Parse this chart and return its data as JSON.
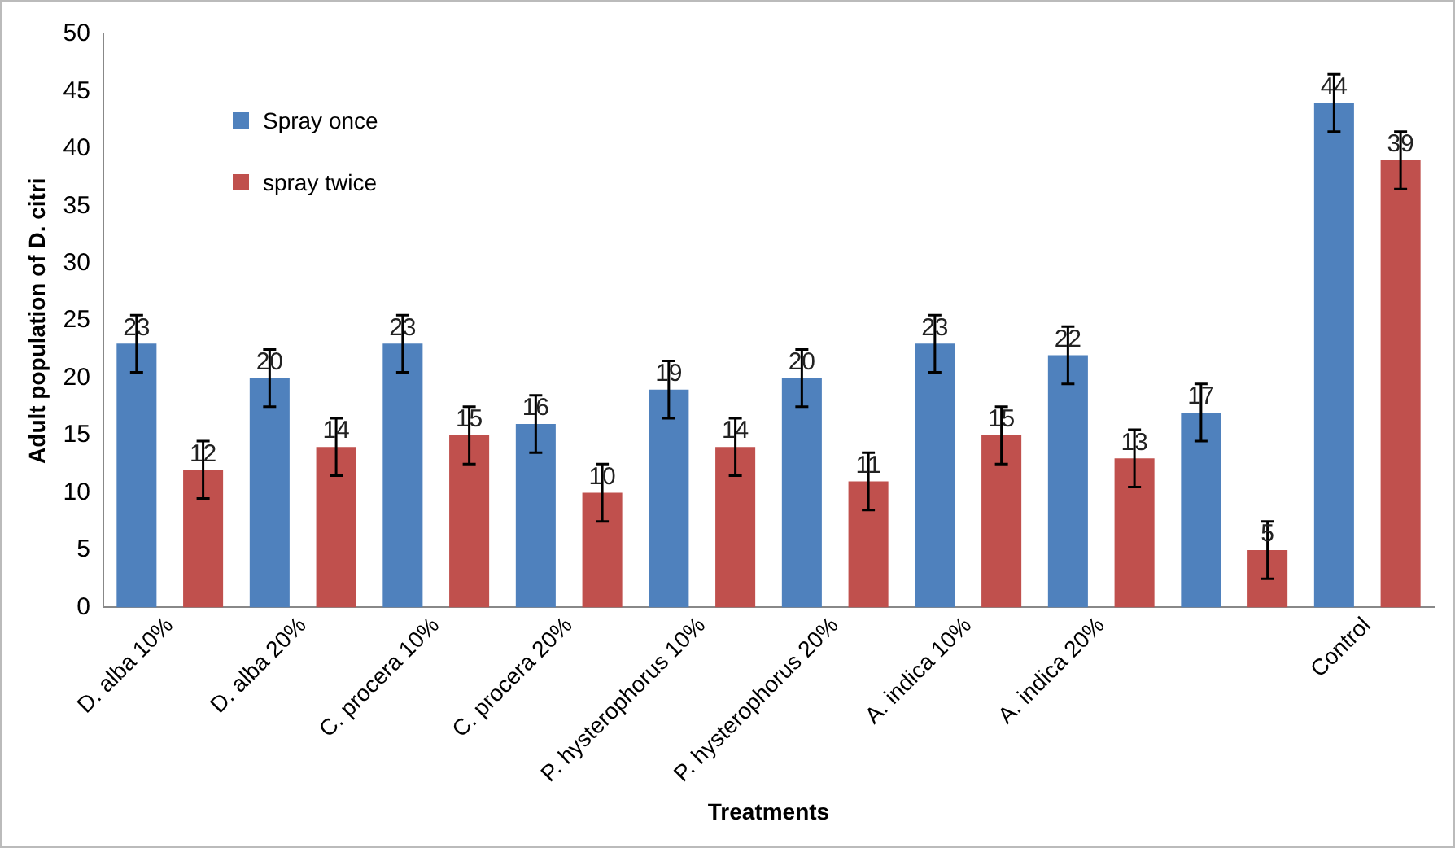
{
  "chart_data": {
    "type": "bar",
    "xlabel": "Treatments",
    "ylabel": "Adult population of D. citri",
    "categories": [
      "D. alba 10%",
      "D. alba 20%",
      "C. procera 10%",
      "C. procera 20%",
      "P. hysterophorus 10%",
      "P. hysterophorus 20%",
      "A. indica 10%",
      "A. indica 20%",
      null,
      "Control"
    ],
    "series": [
      {
        "name": "Spray once",
        "color": "#4f81bd",
        "values": [
          23,
          20,
          23,
          16,
          19,
          20,
          23,
          22,
          17,
          44
        ],
        "errors": [
          2.5,
          2.5,
          2.5,
          2.5,
          2.5,
          2.5,
          2.5,
          2.5,
          2.5,
          2.5
        ]
      },
      {
        "name": "spray twice",
        "color": "#c0504d",
        "values": [
          12,
          14,
          15,
          10,
          14,
          11,
          15,
          13,
          5,
          39
        ],
        "errors": [
          2.5,
          2.5,
          2.5,
          2.5,
          2.5,
          2.5,
          2.5,
          2.5,
          2.5,
          2.5
        ]
      }
    ],
    "ylim": [
      0,
      50
    ],
    "yticks": [
      0,
      5,
      10,
      15,
      20,
      25,
      30,
      35,
      40,
      45,
      50
    ],
    "grid": false,
    "legend": "top left",
    "data_labels": true
  }
}
